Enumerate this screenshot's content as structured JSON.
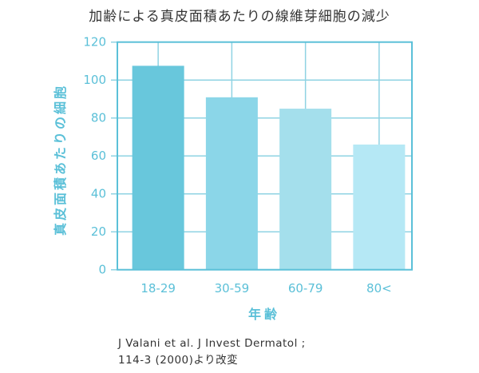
{
  "chart_data": {
    "type": "bar",
    "title": "加齢による真皮面積あたりの線維芽細胞の減少",
    "xlabel": "年齢",
    "ylabel": "真皮面積あたりの細胞",
    "categories": [
      "18-29",
      "30-59",
      "60-79",
      "80<"
    ],
    "values": [
      107.5,
      90.9,
      84.9,
      66.0
    ],
    "ylim": [
      0,
      120
    ],
    "yticks": [
      0,
      20,
      40,
      60,
      80,
      100,
      120
    ],
    "grid": true,
    "bar_colors": [
      "#68c7dc",
      "#8bd6e8",
      "#a4dfec",
      "#b5e8f5"
    ],
    "axis_color": "#5bc0d8"
  },
  "citation": {
    "line1": "J Valani et al. J Invest Dermatol ;",
    "line2": "114-3 (2000)より改変"
  }
}
